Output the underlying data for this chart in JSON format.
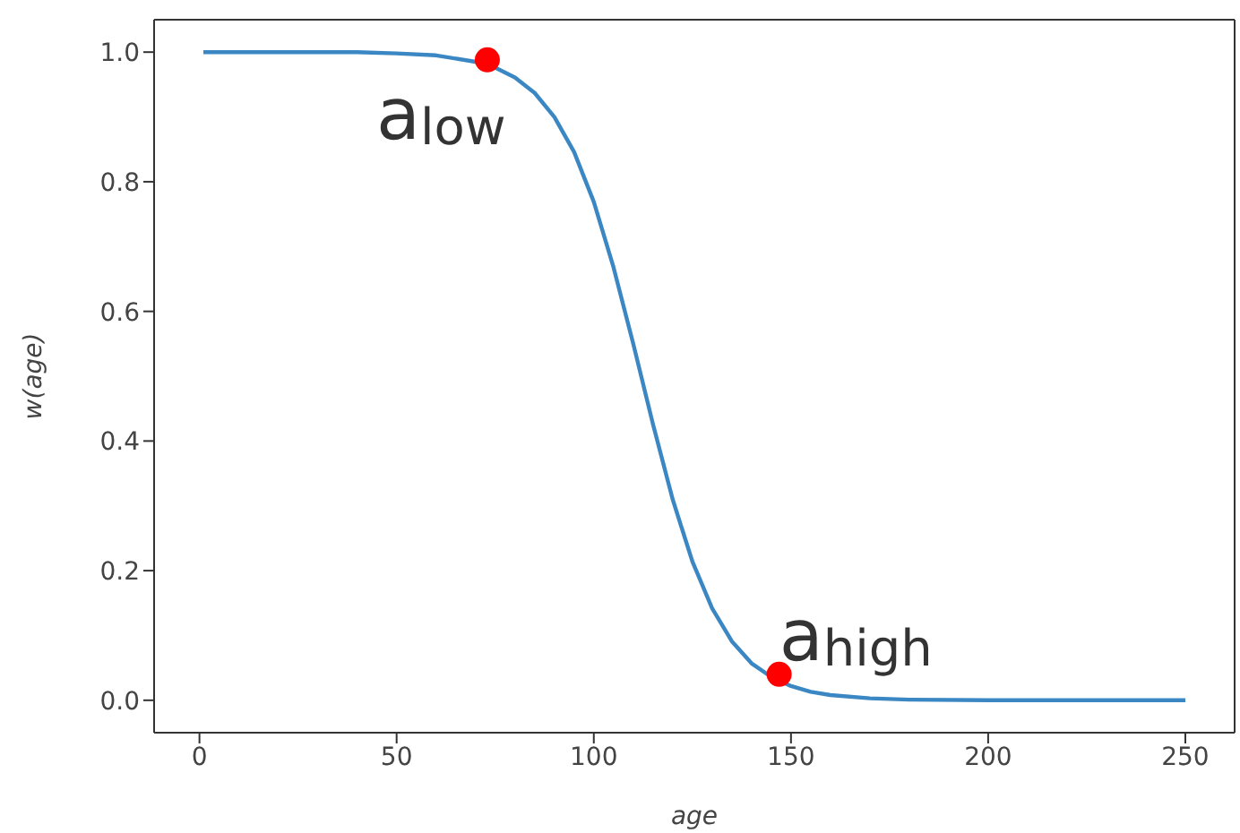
{
  "chart_data": {
    "type": "line",
    "xlabel": "age",
    "ylabel": "w(age)",
    "xlim": [
      -11.5,
      262.5
    ],
    "xticks": [
      0,
      50,
      100,
      150,
      200,
      250
    ],
    "ylim": [
      -0.05,
      1.05
    ],
    "yticks": [
      {
        "value": 0,
        "label": "0.0"
      },
      0.2,
      0.4,
      0.6,
      0.8,
      {
        "value": 1,
        "label": "1.0"
      }
    ],
    "grid": false,
    "series": [
      {
        "color": "#3a87c4",
        "x": [
          1,
          20,
          40,
          50,
          60,
          70,
          75,
          80,
          85,
          90,
          95,
          100,
          105,
          110,
          115,
          120,
          125,
          130,
          135,
          140,
          145,
          150,
          155,
          160,
          170,
          180,
          200,
          225,
          250
        ],
        "values": [
          1.0,
          1.0,
          1.0,
          0.998,
          0.995,
          0.985,
          0.976,
          0.961,
          0.937,
          0.9,
          0.846,
          0.769,
          0.668,
          0.55,
          0.426,
          0.31,
          0.214,
          0.142,
          0.091,
          0.057,
          0.036,
          0.022,
          0.013,
          0.008,
          0.003,
          0.001,
          0.0,
          0.0,
          0.0
        ]
      },
      {
        "type": "scatter",
        "color": "#ff0000",
        "marker": "circle",
        "x": [
          73,
          147
        ],
        "values": [
          0.988,
          0.04
        ]
      }
    ],
    "annotations": [
      {
        "text": "a$_{low}$",
        "x": 73,
        "y": 0.988
      },
      {
        "text": "a$_{high}$",
        "x": 147,
        "y": 0.04
      }
    ]
  }
}
